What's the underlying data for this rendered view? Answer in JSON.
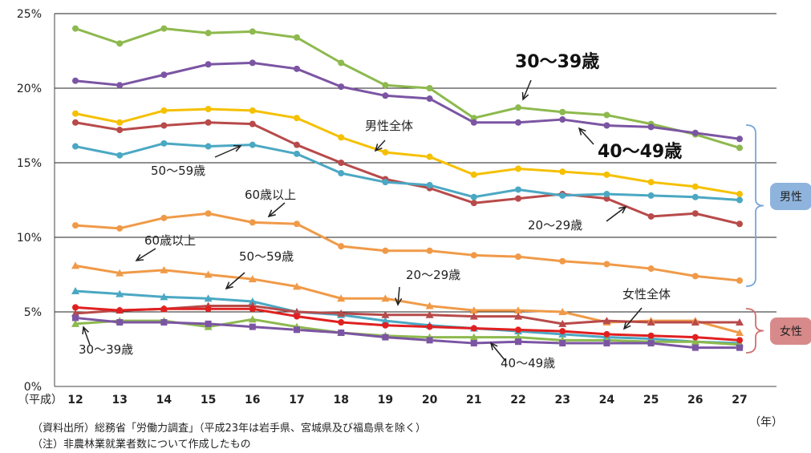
{
  "chart_data": {
    "type": "line",
    "title": "",
    "x_prefix": "（平成）",
    "x_unit": "（年）",
    "x": [
      "12",
      "13",
      "14",
      "15",
      "16",
      "17",
      "18",
      "19",
      "20",
      "21",
      "22",
      "23",
      "24",
      "25",
      "26",
      "27"
    ],
    "ylim": [
      0,
      25
    ],
    "y_ticks": [
      "0%",
      "5%",
      "10%",
      "15%",
      "20%",
      "25%"
    ],
    "grid": true,
    "series": [
      {
        "group": "男性",
        "color": "#8db94e",
        "marker": "circle",
        "values": [
          24.0,
          23.0,
          24.0,
          23.7,
          23.8,
          23.4,
          21.7,
          20.2,
          20.0,
          18.0,
          18.7,
          18.4,
          18.2,
          17.6,
          16.9,
          16.0
        ]
      },
      {
        "group": "男性",
        "color": "#7b55a3",
        "marker": "circle",
        "values": [
          20.5,
          20.2,
          20.9,
          21.6,
          21.7,
          21.3,
          20.1,
          19.5,
          19.3,
          17.7,
          17.7,
          17.9,
          17.5,
          17.4,
          17.0,
          16.6
        ]
      },
      {
        "group": "男性",
        "color": "#f5c000",
        "marker": "circle",
        "values": [
          18.3,
          17.7,
          18.5,
          18.6,
          18.5,
          18.0,
          16.7,
          15.7,
          15.4,
          14.2,
          14.6,
          14.4,
          14.2,
          13.7,
          13.4,
          12.9
        ]
      },
      {
        "group": "男性",
        "color": "#b84a4a",
        "marker": "circle",
        "values": [
          17.7,
          17.2,
          17.5,
          17.7,
          17.6,
          16.2,
          15.0,
          13.9,
          13.3,
          12.3,
          12.6,
          12.9,
          12.6,
          11.4,
          11.6,
          10.9
        ]
      },
      {
        "group": "男性",
        "color": "#4ba8c3",
        "marker": "circle",
        "values": [
          16.1,
          15.5,
          16.3,
          16.1,
          16.2,
          15.6,
          14.3,
          13.7,
          13.5,
          12.7,
          13.2,
          12.8,
          12.9,
          12.8,
          12.7,
          12.5
        ]
      },
      {
        "group": "男性",
        "color": "#f09a48",
        "marker": "circle",
        "values": [
          10.8,
          10.6,
          11.3,
          11.6,
          11.0,
          10.9,
          9.4,
          9.1,
          9.1,
          8.8,
          8.7,
          8.4,
          8.2,
          7.9,
          7.4,
          7.1
        ]
      },
      {
        "group": "女性",
        "color": "#f09a48",
        "marker": "triangle",
        "values": [
          8.1,
          7.6,
          7.8,
          7.5,
          7.2,
          6.7,
          5.9,
          5.9,
          5.4,
          5.1,
          5.1,
          5.0,
          4.3,
          4.4,
          4.4,
          3.6
        ]
      },
      {
        "group": "女性",
        "color": "#4ba8c3",
        "marker": "triangle",
        "values": [
          6.4,
          6.2,
          6.0,
          5.9,
          5.7,
          5.0,
          4.8,
          4.4,
          4.1,
          3.9,
          3.7,
          3.5,
          3.3,
          3.2,
          3.0,
          2.9
        ]
      },
      {
        "group": "女性",
        "color": "#b84a4a",
        "marker": "triangle",
        "values": [
          4.9,
          5.1,
          5.2,
          5.4,
          5.4,
          5.0,
          4.9,
          4.8,
          4.8,
          4.7,
          4.7,
          4.2,
          4.4,
          4.3,
          4.3,
          4.3
        ]
      },
      {
        "group": "女性",
        "color": "#8db94e",
        "marker": "triangle",
        "values": [
          4.2,
          4.4,
          4.4,
          4.0,
          4.5,
          4.0,
          3.6,
          3.4,
          3.3,
          3.3,
          3.3,
          3.1,
          3.1,
          3.0,
          3.0,
          2.8
        ]
      },
      {
        "group": "女性",
        "color": "#e02020",
        "marker": "circle",
        "values": [
          5.3,
          5.1,
          5.2,
          5.2,
          5.2,
          4.7,
          4.3,
          4.1,
          4.0,
          3.9,
          3.8,
          3.7,
          3.5,
          3.4,
          3.3,
          3.1
        ]
      },
      {
        "group": "女性",
        "color": "#7b55a3",
        "marker": "square",
        "values": [
          4.6,
          4.3,
          4.3,
          4.2,
          4.0,
          3.8,
          3.6,
          3.3,
          3.1,
          2.9,
          3.0,
          2.9,
          2.9,
          2.9,
          2.6,
          2.6
        ]
      }
    ],
    "annotations": [
      {
        "text": "30〜39歳",
        "style": "big",
        "x": 642,
        "y": 84
      },
      {
        "text": "40〜49歳",
        "style": "big",
        "x": 745,
        "y": 196
      },
      {
        "text": "男性全体",
        "style": "normal",
        "x": 455,
        "y": 162
      },
      {
        "text": "50〜59歳",
        "style": "normal",
        "x": 188,
        "y": 218
      },
      {
        "text": "60歳以上",
        "style": "normal",
        "x": 305,
        "y": 248
      },
      {
        "text": "20〜29歳",
        "style": "normal",
        "x": 658,
        "y": 286
      },
      {
        "text": "60歳以上",
        "style": "normal",
        "x": 180,
        "y": 305
      },
      {
        "text": "50〜59歳",
        "style": "normal",
        "x": 298,
        "y": 325
      },
      {
        "text": "20〜29歳",
        "style": "normal",
        "x": 506,
        "y": 348
      },
      {
        "text": "女性全体",
        "style": "normal",
        "x": 776,
        "y": 372
      },
      {
        "text": "30〜39歳",
        "style": "normal",
        "x": 98,
        "y": 441
      },
      {
        "text": "40〜49歳",
        "style": "normal",
        "x": 624,
        "y": 458
      }
    ],
    "arrows": [
      [
        662,
        100,
        652,
        124
      ],
      [
        740,
        180,
        722,
        160
      ],
      [
        480,
        175,
        468,
        188
      ],
      [
        268,
        196,
        300,
        182
      ],
      [
        355,
        253,
        335,
        270
      ],
      [
        194,
        310,
        170,
        325
      ],
      [
        305,
        340,
        282,
        360
      ],
      [
        498,
        358,
        496,
        380
      ],
      [
        800,
        384,
        778,
        410
      ],
      [
        112,
        430,
        104,
        408
      ],
      [
        630,
        450,
        612,
        428
      ],
      [
        756,
        276,
        780,
        258
      ]
    ],
    "groups": [
      {
        "label": "男性",
        "color": "#8eb4de"
      },
      {
        "label": "女性",
        "color": "#d88a8a"
      }
    ]
  },
  "notes": {
    "source": "（資料出所）総務省「労働力調査」（平成23年は岩手県、宮城県及び福島県を除く）",
    "note": "（注）非農林業就業者数について作成したもの"
  }
}
